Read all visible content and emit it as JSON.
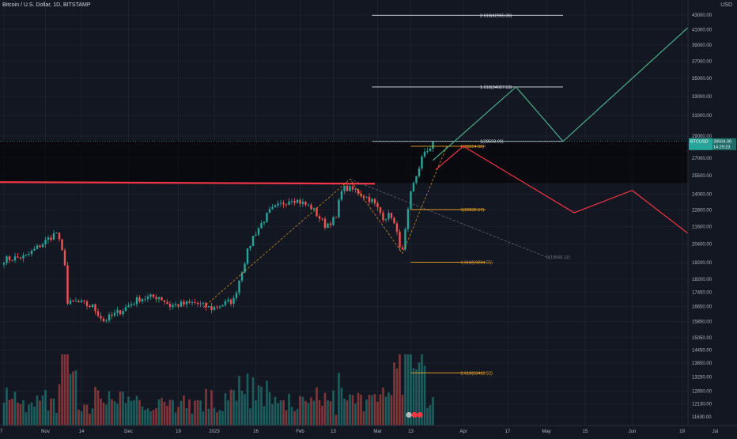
{
  "title": "Bitcoin / U.S. Dollar, 1D, BITSTAMP",
  "currency": "USD",
  "price_tag": {
    "symbol": "BTCUSD",
    "price": "28504.00",
    "countdown": "14:29:23"
  },
  "colors": {
    "bg": "#131722",
    "up": "#26a69a",
    "down": "#ef5350",
    "resistance": "#f23645",
    "fib": "#f5a623",
    "proj_up": "#4caf8a",
    "proj_down": "#f23645",
    "white_line": "#e0e3eb"
  },
  "fib_labels": {
    "f2618": "2.618(42965.36)",
    "f1618": "1.618(34027.53)",
    "f1": "1(28503.99)",
    "r0": "0(28054.60)",
    "r1": "1(22832.57)",
    "r0b": "0(19566.12)",
    "r1618": "1.618(19234.55)",
    "r2618": "2.618(13412.52)"
  },
  "chart_data": {
    "type": "candlestick",
    "title": "Bitcoin / U.S. Dollar, 1D, BITSTAMP",
    "y_axis": {
      "ticks": [
        43000,
        41000,
        39000,
        37000,
        35000,
        33000,
        31000,
        29000,
        27000,
        25500,
        24000,
        22800,
        21600,
        20400,
        19200,
        18200,
        17450,
        16650,
        15850,
        15050,
        14450,
        13850,
        13250,
        12650,
        12130,
        11630
      ]
    },
    "x_axis": {
      "ticks": [
        "7",
        "Nov",
        "14",
        "Dec",
        "19",
        "2023",
        "16",
        "Feb",
        "13",
        "Mar",
        "13",
        "Apr",
        "17",
        "May",
        "15",
        "Jun",
        "19",
        "Jul"
      ]
    },
    "price_path": [
      [
        "2022-10-17",
        19400
      ],
      [
        "2022-10-25",
        19600
      ],
      [
        "2022-11-01",
        20600
      ],
      [
        "2022-11-05",
        21200
      ],
      [
        "2022-11-08",
        19200
      ],
      [
        "2022-11-09",
        16800
      ],
      [
        "2022-11-12",
        16900
      ],
      [
        "2022-11-18",
        16650
      ],
      [
        "2022-11-22",
        15900
      ],
      [
        "2022-11-28",
        16400
      ],
      [
        "2022-12-05",
        17100
      ],
      [
        "2022-12-12",
        17200
      ],
      [
        "2022-12-16",
        16700
      ],
      [
        "2022-12-25",
        16850
      ],
      [
        "2022-12-31",
        16550
      ],
      [
        "2023-01-08",
        17000
      ],
      [
        "2023-01-13",
        19900
      ],
      [
        "2023-01-15",
        20900
      ],
      [
        "2023-01-21",
        22700
      ],
      [
        "2023-01-29",
        23700
      ],
      [
        "2023-02-05",
        23000
      ],
      [
        "2023-02-10",
        21700
      ],
      [
        "2023-02-14",
        22200
      ],
      [
        "2023-02-16",
        24500
      ],
      [
        "2023-02-21",
        24300
      ],
      [
        "2023-02-27",
        23500
      ],
      [
        "2023-03-03",
        22300
      ],
      [
        "2023-03-06",
        22400
      ],
      [
        "2023-03-09",
        20400
      ],
      [
        "2023-03-10",
        19900
      ],
      [
        "2023-03-13",
        24000
      ],
      [
        "2023-03-17",
        27000
      ],
      [
        "2023-03-20",
        28000
      ],
      [
        "2023-03-21",
        28504
      ]
    ],
    "resistance_level": 24900,
    "fib_levels": [
      {
        "label": "2.618",
        "value": 42965.36
      },
      {
        "label": "1.618",
        "value": 34027.53
      },
      {
        "label": "1",
        "value": 28503.99
      },
      {
        "label": "0",
        "value": 28054.6
      },
      {
        "label": "1",
        "value": 22832.57
      },
      {
        "label": "0",
        "value": 19566.12
      },
      {
        "label": "1.618",
        "value": 19234.55
      },
      {
        "label": "2.618",
        "value": 13412.52
      }
    ],
    "projection_bull": [
      [
        "2023-03-21",
        26800
      ],
      [
        "2023-04-20",
        34027
      ],
      [
        "2023-05-07",
        28500
      ],
      [
        "2023-06-26",
        42965
      ]
    ],
    "projection_bear": [
      [
        "2023-03-22",
        26000
      ],
      [
        "2023-04-01",
        28054
      ],
      [
        "2023-05-11",
        22600
      ],
      [
        "2023-06-01",
        24300
      ],
      [
        "2023-07-25",
        16700
      ]
    ],
    "last_price": 28504.0
  }
}
